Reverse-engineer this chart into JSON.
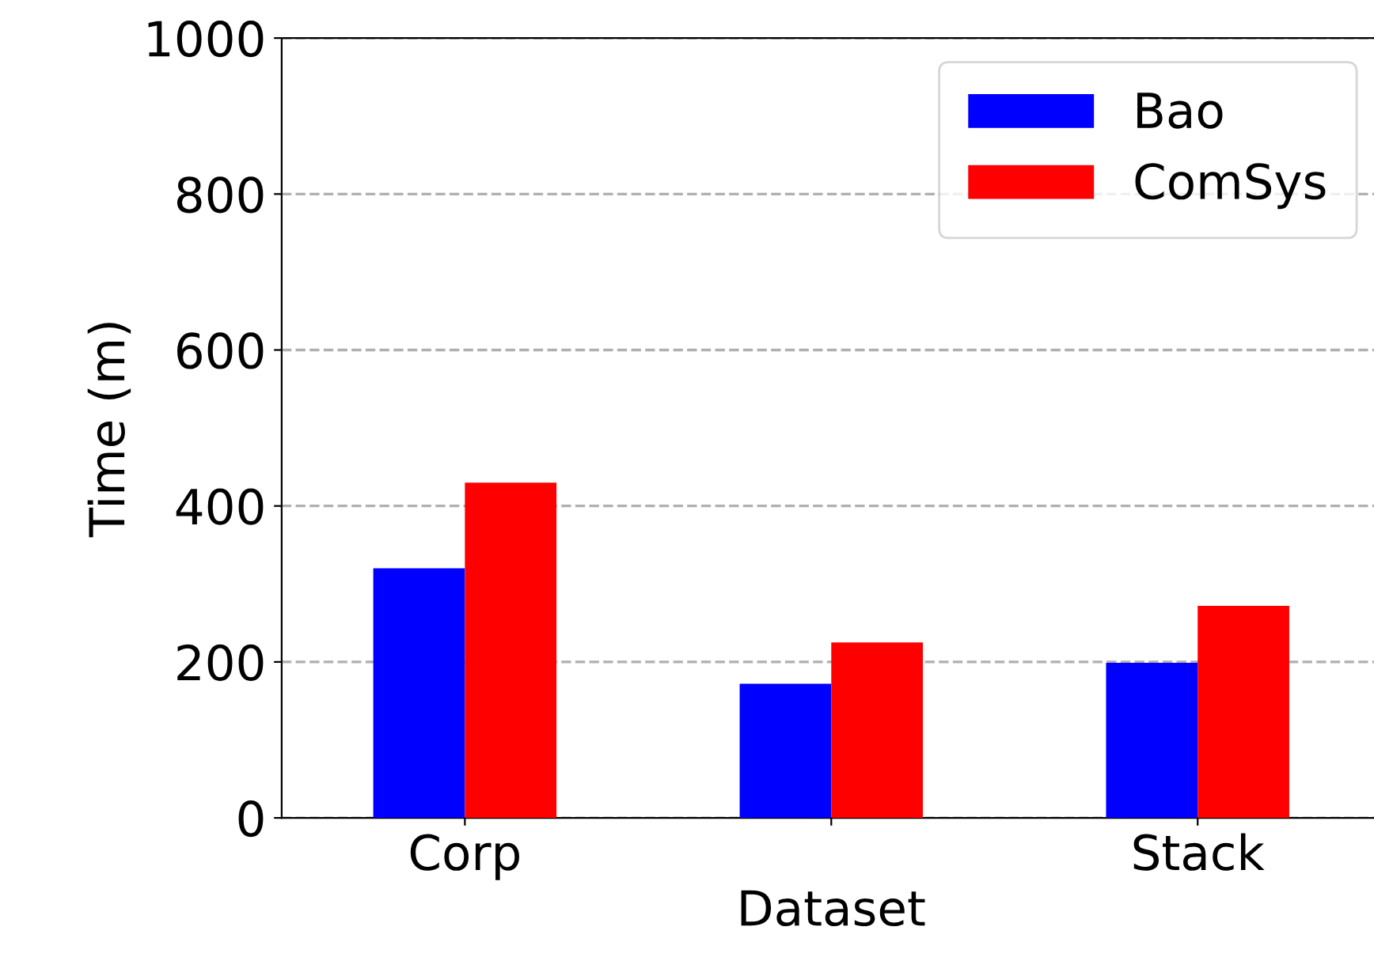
{
  "chart_data": {
    "type": "bar",
    "xlabel": "Dataset",
    "ylabel": "Time (m)",
    "categories": [
      "Corp",
      null,
      "Stack"
    ],
    "series": [
      {
        "name": "Bao",
        "color": "#0000ff",
        "values": [
          320,
          172,
          199
        ]
      },
      {
        "name": "ComSys",
        "color": "#ff0000",
        "values": [
          430,
          225,
          272
        ]
      }
    ],
    "ylim": [
      0,
      1000
    ],
    "yticks": [
      0,
      200,
      400,
      600,
      800,
      1000
    ],
    "grid": "y",
    "legend": "top right"
  }
}
